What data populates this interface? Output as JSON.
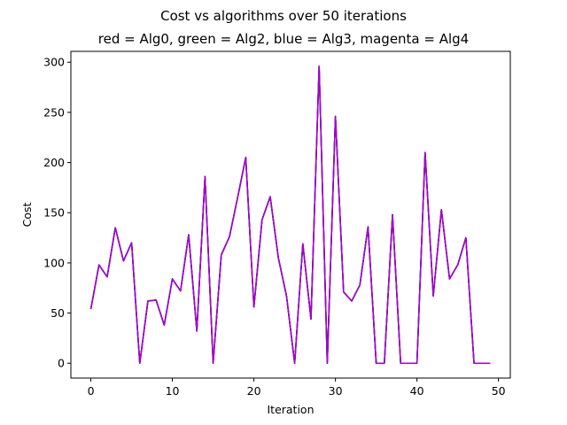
{
  "chart_data": {
    "type": "line",
    "title": "Cost vs algorithms over 50 iterations",
    "subtitle": "red = Alg0, green = Alg2, blue = Alg3, magenta = Alg4",
    "xlabel": "Iteration",
    "ylabel": "Cost",
    "xlim": [
      -2.45,
      51.45
    ],
    "ylim": [
      -14.8,
      310.8
    ],
    "grid": false,
    "legend": "none",
    "x_ticks": [
      0,
      10,
      20,
      30,
      40,
      50
    ],
    "y_ticks": [
      0,
      50,
      100,
      150,
      200,
      250,
      300
    ],
    "x": [
      0,
      1,
      2,
      3,
      4,
      5,
      6,
      7,
      8,
      9,
      10,
      11,
      12,
      13,
      14,
      15,
      16,
      17,
      18,
      19,
      20,
      21,
      22,
      23,
      24,
      25,
      26,
      27,
      28,
      29,
      30,
      31,
      32,
      33,
      34,
      35,
      36,
      37,
      38,
      39,
      40,
      41,
      42,
      43,
      44,
      45,
      46,
      47,
      48,
      49
    ],
    "series": [
      {
        "name": "Alg0",
        "color": "#ff0000",
        "values": [
          54,
          98,
          86,
          135,
          102,
          120,
          0,
          62,
          63,
          38,
          84,
          72,
          128,
          32,
          186,
          0,
          108,
          126,
          165,
          205,
          56,
          143,
          166,
          105,
          67,
          0,
          119,
          44,
          296,
          0,
          246,
          71,
          62,
          78,
          136,
          0,
          0,
          148,
          0,
          0,
          0,
          210,
          67,
          153,
          84,
          98,
          125,
          0,
          0,
          0
        ]
      },
      {
        "name": "Alg2",
        "color": "#00a000",
        "values": [
          54,
          98,
          86,
          135,
          102,
          120,
          0,
          62,
          63,
          38,
          84,
          72,
          128,
          32,
          186,
          0,
          108,
          126,
          165,
          205,
          56,
          143,
          166,
          105,
          67,
          0,
          119,
          44,
          296,
          0,
          246,
          71,
          62,
          78,
          136,
          0,
          0,
          148,
          0,
          0,
          0,
          210,
          67,
          153,
          84,
          98,
          125,
          0,
          0,
          0
        ]
      },
      {
        "name": "Alg3",
        "color": "#0000ff",
        "values": [
          54,
          98,
          86,
          135,
          102,
          120,
          0,
          62,
          63,
          38,
          84,
          72,
          128,
          32,
          186,
          0,
          108,
          126,
          165,
          205,
          56,
          143,
          166,
          105,
          67,
          0,
          119,
          44,
          296,
          0,
          246,
          71,
          62,
          78,
          136,
          0,
          0,
          148,
          0,
          0,
          0,
          210,
          67,
          153,
          84,
          98,
          125,
          0,
          0,
          0
        ]
      },
      {
        "name": "Alg4",
        "color": "#aa00cc",
        "values": [
          54,
          98,
          86,
          135,
          102,
          120,
          0,
          62,
          63,
          38,
          84,
          72,
          128,
          32,
          186,
          0,
          108,
          126,
          165,
          205,
          56,
          143,
          166,
          105,
          67,
          0,
          119,
          44,
          296,
          0,
          246,
          71,
          62,
          78,
          136,
          0,
          0,
          148,
          0,
          0,
          0,
          210,
          67,
          153,
          84,
          98,
          125,
          0,
          0,
          0
        ]
      }
    ]
  }
}
